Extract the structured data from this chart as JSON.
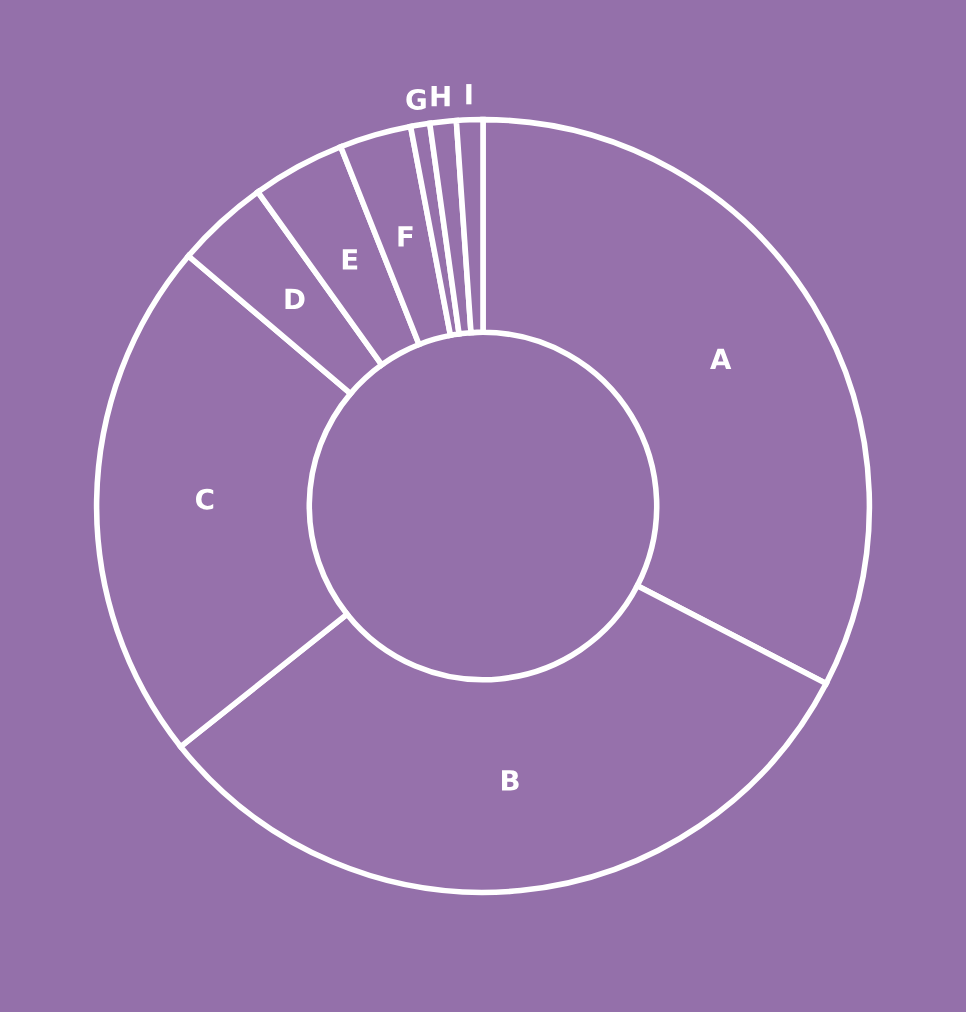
{
  "chart_data": {
    "type": "donut",
    "categories": [
      "A",
      "B",
      "C",
      "D",
      "E",
      "F",
      "G",
      "H",
      "I"
    ],
    "values": [
      32.6,
      31.7,
      21.9,
      3.9,
      3.9,
      3.0,
      0.8,
      1.1,
      1.1
    ],
    "colors": [
      "#9671ab",
      "#9671ab",
      "#9671ab",
      "#9671ab",
      "#9671ab",
      "#9671ab",
      "#9671ab",
      "#9671ab",
      "#9671ab"
    ],
    "legend": false
  }
}
